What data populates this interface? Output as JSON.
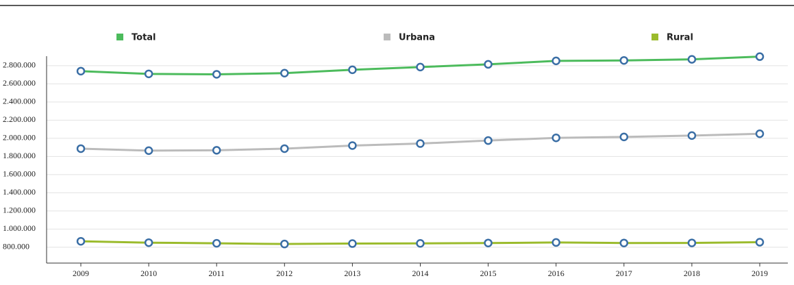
{
  "chart_data": {
    "type": "line",
    "categories": [
      "2009",
      "2010",
      "2011",
      "2012",
      "2013",
      "2014",
      "2015",
      "2016",
      "2017",
      "2018",
      "2019"
    ],
    "series": [
      {
        "name": "Total",
        "color": "#4cbb5c",
        "values": [
          2740000,
          2710000,
          2705000,
          2718000,
          2755000,
          2785000,
          2815000,
          2853000,
          2858000,
          2870000,
          2900000
        ]
      },
      {
        "name": "Urbana",
        "color": "#bbbbbb",
        "values": [
          1886000,
          1864000,
          1868000,
          1886000,
          1920000,
          1942000,
          1975000,
          2005000,
          2015000,
          2030000,
          2050000
        ]
      },
      {
        "name": "Rural",
        "color": "#9bbb2c",
        "values": [
          865000,
          850000,
          843000,
          835000,
          840000,
          842000,
          846000,
          852000,
          846000,
          847000,
          855000
        ]
      }
    ],
    "ylim": [
      625000,
      2920000
    ],
    "yticks": [
      {
        "value": 800000,
        "label": "800.000"
      },
      {
        "value": 1000000,
        "label": "1.000.000"
      },
      {
        "value": 1200000,
        "label": "1.200.000"
      },
      {
        "value": 1400000,
        "label": "1.400.000"
      },
      {
        "value": 1600000,
        "label": "1.600.000"
      },
      {
        "value": 1800000,
        "label": "1.800.000"
      },
      {
        "value": 2000000,
        "label": "2.000.000"
      },
      {
        "value": 2200000,
        "label": "2.200.000"
      },
      {
        "value": 2400000,
        "label": "2.400.000"
      },
      {
        "value": 2600000,
        "label": "2.600.000"
      },
      {
        "value": 2800000,
        "label": "2.800.000"
      }
    ],
    "grid": true,
    "marker_color": "#3a6ea5"
  }
}
